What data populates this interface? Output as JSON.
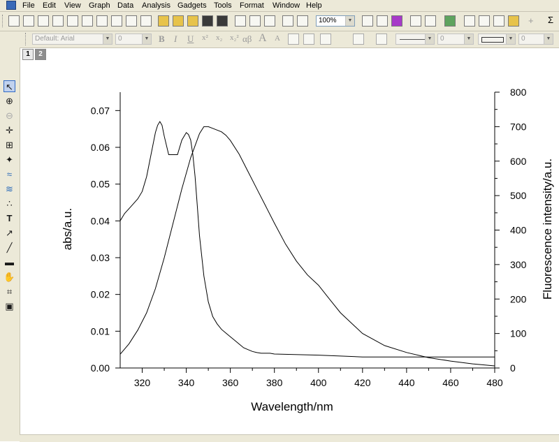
{
  "menu": [
    "File",
    "Edit",
    "View",
    "Graph",
    "Data",
    "Analysis",
    "Gadgets",
    "Tools",
    "Format",
    "Window",
    "Help"
  ],
  "toolbar": {
    "zoom": "100%",
    "sigma": "Σ",
    "plus": "+"
  },
  "format_toolbar": {
    "font": "Default: Arial",
    "size": "0",
    "bold": "B",
    "italic": "I",
    "underline": "U",
    "sup": "x²",
    "sub": "x₂",
    "supsub": "x₂²",
    "greek": "αβ",
    "grow": "A",
    "shrink": "A",
    "line_width": "0",
    "border_width": "0"
  },
  "pages": [
    "1",
    "2"
  ],
  "tools": [
    "pointer-tool",
    "zoom-in-tool",
    "zoom-out-tool",
    "screen-reader-tool",
    "data-selector-tool",
    "data-reader-tool",
    "mask-tool",
    "draw-data-tool",
    "scatter-points-tool",
    "text-tool",
    "arrow-tool",
    "line-tool",
    "rectangle-tool",
    "hand-tool",
    "region-tool",
    "zoom-window-tool"
  ],
  "chart_data": {
    "type": "line",
    "xlabel": "Wavelength/nm",
    "ylabel_left": "abs/a.u.",
    "ylabel_right": "Fluorescence intensity/a.u.",
    "xlim": [
      310,
      480
    ],
    "ylim_left": [
      0,
      0.075
    ],
    "ylim_right": [
      0,
      800
    ],
    "x_ticks": [
      320,
      340,
      360,
      380,
      400,
      420,
      440,
      460,
      480
    ],
    "y_ticks_left": [
      "0.00",
      "0.01",
      "0.02",
      "0.03",
      "0.04",
      "0.05",
      "0.06",
      "0.07"
    ],
    "y_ticks_right": [
      0,
      100,
      200,
      300,
      400,
      500,
      600,
      700,
      800
    ],
    "series": [
      {
        "axis": "left",
        "x": [
          310,
          312,
          315,
          318,
          320,
          322,
          324,
          326,
          327,
          328,
          329,
          330,
          332,
          334,
          336,
          338,
          340,
          341,
          342,
          343,
          344,
          345,
          346,
          348,
          350,
          352,
          354,
          356,
          358,
          360,
          362,
          364,
          366,
          368,
          370,
          372,
          374,
          376,
          378,
          380,
          400,
          420,
          440,
          460,
          480
        ],
        "y": [
          0.04,
          0.042,
          0.044,
          0.046,
          0.048,
          0.052,
          0.058,
          0.064,
          0.066,
          0.067,
          0.066,
          0.063,
          0.058,
          0.058,
          0.058,
          0.062,
          0.064,
          0.0635,
          0.062,
          0.058,
          0.052,
          0.044,
          0.036,
          0.025,
          0.018,
          0.014,
          0.012,
          0.0105,
          0.0095,
          0.0085,
          0.0075,
          0.0065,
          0.0055,
          0.005,
          0.0045,
          0.0042,
          0.004,
          0.004,
          0.004,
          0.0038,
          0.0035,
          0.003,
          0.003,
          0.003,
          0.003
        ]
      },
      {
        "axis": "right",
        "x": [
          310,
          314,
          318,
          322,
          326,
          330,
          334,
          338,
          342,
          346,
          348,
          350,
          352,
          354,
          356,
          358,
          360,
          364,
          368,
          372,
          376,
          380,
          385,
          390,
          395,
          400,
          405,
          410,
          420,
          430,
          440,
          450,
          460,
          470,
          480
        ],
        "y": [
          40,
          70,
          110,
          160,
          230,
          320,
          420,
          520,
          610,
          680,
          700,
          700,
          695,
          690,
          685,
          675,
          660,
          620,
          570,
          520,
          470,
          420,
          360,
          310,
          270,
          240,
          200,
          160,
          100,
          65,
          45,
          30,
          20,
          12,
          6
        ]
      }
    ]
  }
}
